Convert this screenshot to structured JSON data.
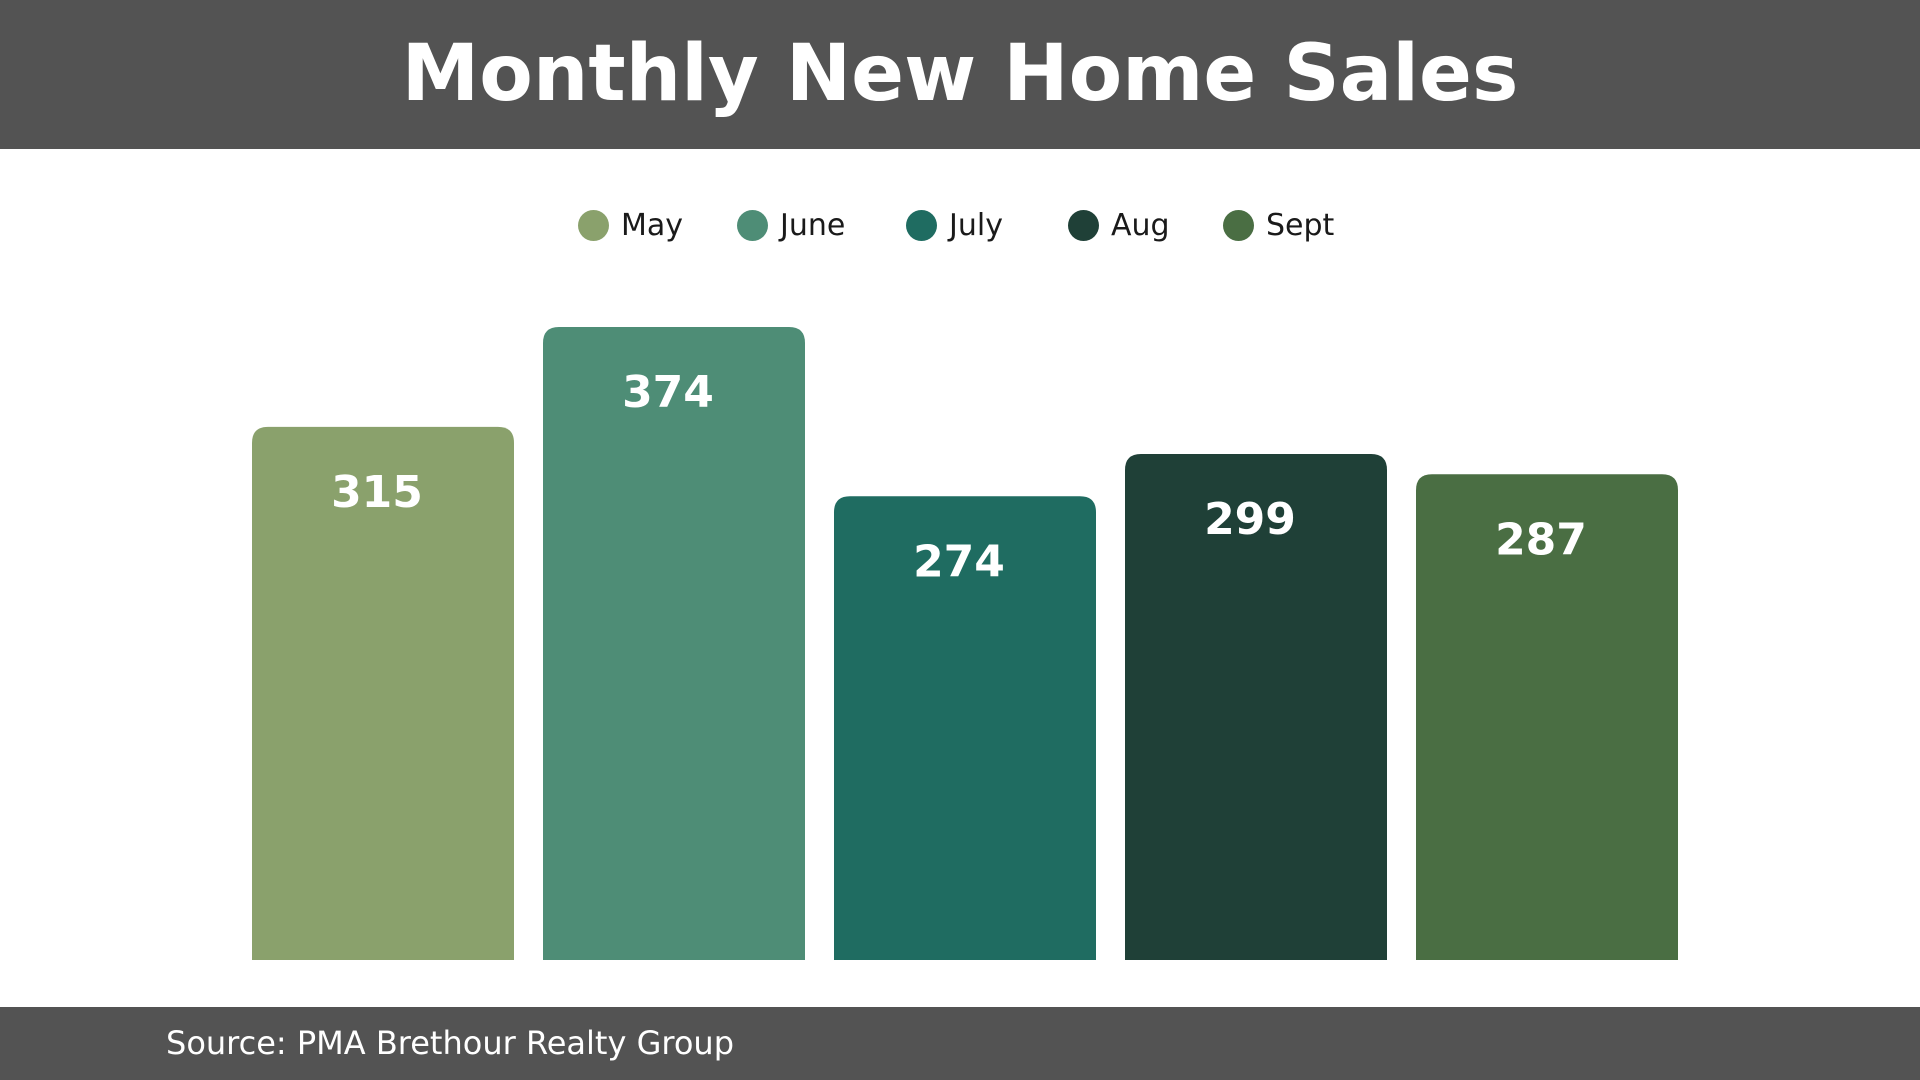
{
  "title": "Monthly New Home Sales",
  "source": "Source: PMA Brethour Realty Group",
  "colors": {
    "header_bg": "#535353",
    "May": "#8aa16c",
    "June": "#4e8d76",
    "July": "#1f6c61",
    "Aug": "#1f4037",
    "Sept": "#4a6e43"
  },
  "chart_data": {
    "type": "bar",
    "title": "Monthly New Home Sales",
    "categories": [
      "May",
      "June",
      "July",
      "Aug",
      "Sept"
    ],
    "values": [
      315,
      374,
      274,
      299,
      287
    ],
    "colors": [
      "#8aa16c",
      "#4e8d76",
      "#1f6c61",
      "#1f4037",
      "#4a6e43"
    ],
    "legend": [
      "May",
      "June",
      "July",
      "Aug",
      "Sept"
    ],
    "legend_position": "top-center",
    "data_labels": [
      "315",
      "374",
      "274",
      "299",
      "287"
    ],
    "xlabel": "",
    "ylabel": "",
    "grid": false
  }
}
